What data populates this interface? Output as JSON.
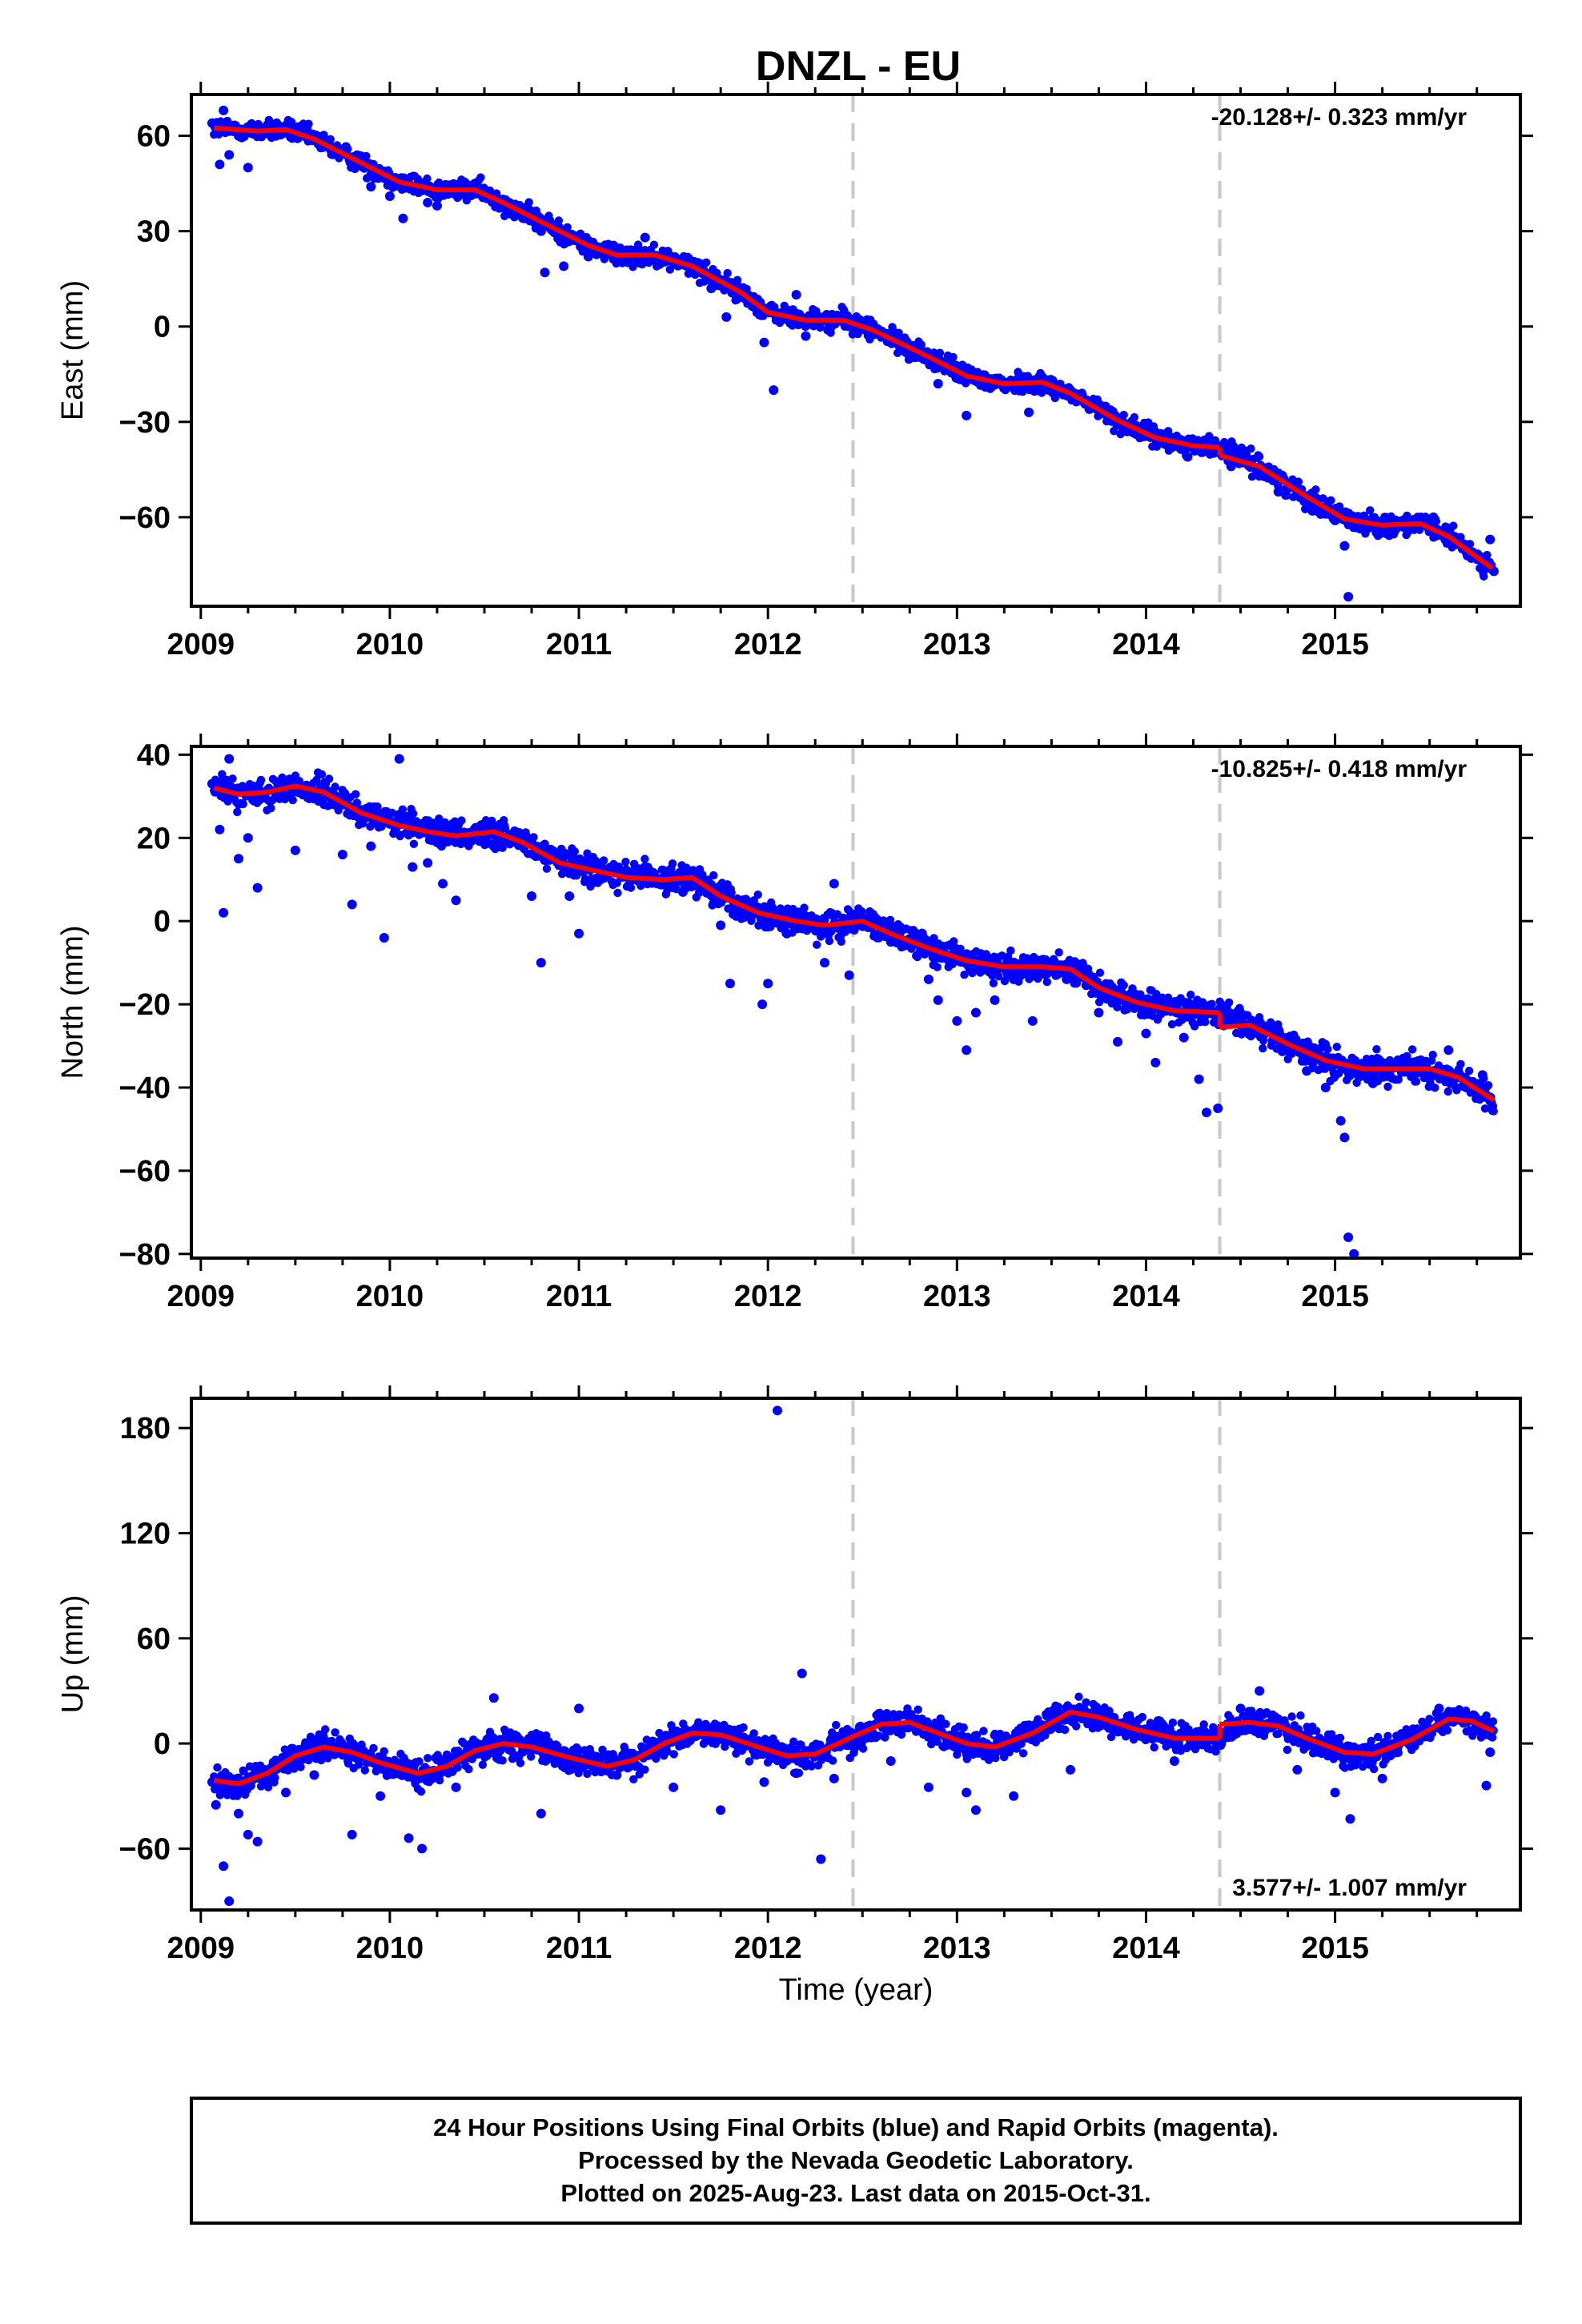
{
  "title": "DNZL - EU",
  "colors": {
    "final_orbits": "#0000ff",
    "model": "#ff0000",
    "event_line": "#c8c8c8",
    "frame": "#000000"
  },
  "footer": {
    "lines": [
      "24 Hour Positions Using Final Orbits (blue) and Rapid Orbits (magenta).",
      "Processed by the Nevada Geodetic Laboratory.",
      "Plotted on 2025-Aug-23. Last data on 2015-Oct-31."
    ]
  },
  "chart_data": [
    {
      "type": "scatter",
      "ylabel": "East (mm)",
      "xlabel": "",
      "rate_label": "-20.128+/- 0.323 mm/yr",
      "rate_position": "top-right",
      "xlim": [
        2008.95,
        2015.98
      ],
      "ylim": [
        -88,
        73
      ],
      "xticks": [
        2009,
        2010,
        2011,
        2012,
        2013,
        2014,
        2015
      ],
      "yticks": [
        60,
        30,
        0,
        -30,
        -60
      ],
      "ytick_labels": [
        "60",
        "30",
        "0",
        "−30",
        "−60"
      ],
      "event_lines_x": [
        2012.45,
        2014.39
      ],
      "model": {
        "name": "model",
        "offsets": [
          {
            "x": 2014.39,
            "dy": -2.5
          }
        ],
        "points": [
          [
            2009.07,
            62.5
          ],
          [
            2009.3,
            61.5
          ],
          [
            2009.45,
            62.0
          ],
          [
            2009.6,
            59.0
          ],
          [
            2009.85,
            51.5
          ],
          [
            2010.05,
            45.5
          ],
          [
            2010.25,
            43.0
          ],
          [
            2010.45,
            43.0
          ],
          [
            2010.6,
            39.0
          ],
          [
            2010.85,
            31.5
          ],
          [
            2011.05,
            25.5
          ],
          [
            2011.2,
            22.5
          ],
          [
            2011.4,
            22.5
          ],
          [
            2011.6,
            19.0
          ],
          [
            2011.85,
            11.0
          ],
          [
            2012.0,
            4.5
          ],
          [
            2012.2,
            2.0
          ],
          [
            2012.4,
            2.0
          ],
          [
            2012.55,
            -1.0
          ],
          [
            2012.85,
            -9.5
          ],
          [
            2013.05,
            -15.5
          ],
          [
            2013.25,
            -18.0
          ],
          [
            2013.45,
            -17.5
          ],
          [
            2013.6,
            -21.0
          ],
          [
            2013.85,
            -29.5
          ],
          [
            2014.05,
            -35.0
          ],
          [
            2014.25,
            -37.5
          ],
          [
            2014.39,
            -38.0
          ],
          [
            2014.6,
            -44.0
          ],
          [
            2014.85,
            -53.5
          ],
          [
            2015.05,
            -60.5
          ],
          [
            2015.25,
            -62.5
          ],
          [
            2015.45,
            -62.0
          ],
          [
            2015.6,
            -66.0
          ],
          [
            2015.83,
            -76.0
          ]
        ]
      },
      "points": [
        [
          2009.06,
          64
        ],
        [
          2009.1,
          51
        ],
        [
          2009.12,
          68
        ],
        [
          2009.15,
          54
        ],
        [
          2009.2,
          60
        ],
        [
          2009.25,
          50
        ],
        [
          2009.35,
          63
        ],
        [
          2009.55,
          60
        ],
        [
          2009.7,
          55
        ],
        [
          2009.9,
          44
        ],
        [
          2010.0,
          41
        ],
        [
          2010.07,
          34
        ],
        [
          2010.2,
          39
        ],
        [
          2010.25,
          38
        ],
        [
          2010.45,
          45
        ],
        [
          2010.6,
          40
        ],
        [
          2010.8,
          30
        ],
        [
          2010.82,
          17
        ],
        [
          2010.92,
          19
        ],
        [
          2011.05,
          22
        ],
        [
          2011.3,
          24
        ],
        [
          2011.35,
          28
        ],
        [
          2011.7,
          12
        ],
        [
          2011.78,
          3
        ],
        [
          2011.98,
          -5
        ],
        [
          2012.03,
          -20
        ],
        [
          2012.15,
          10
        ],
        [
          2012.2,
          -3
        ],
        [
          2012.48,
          0
        ],
        [
          2012.75,
          -10
        ],
        [
          2012.9,
          -18
        ],
        [
          2013.05,
          -28
        ],
        [
          2013.15,
          -19
        ],
        [
          2013.38,
          -27
        ],
        [
          2013.7,
          -26
        ],
        [
          2013.9,
          -33
        ],
        [
          2014.1,
          -37
        ],
        [
          2014.22,
          -41
        ],
        [
          2014.45,
          -44
        ],
        [
          2014.6,
          -47
        ],
        [
          2014.7,
          -52
        ],
        [
          2014.88,
          -58
        ],
        [
          2015.0,
          -61
        ],
        [
          2015.05,
          -69
        ],
        [
          2015.07,
          -85
        ],
        [
          2015.3,
          -65
        ],
        [
          2015.52,
          -60
        ],
        [
          2015.7,
          -72
        ],
        [
          2015.82,
          -67
        ],
        [
          2015.84,
          -77
        ]
      ]
    },
    {
      "type": "scatter",
      "ylabel": "North (mm)",
      "xlabel": "",
      "rate_label": "-10.825+/- 0.418 mm/yr",
      "rate_position": "top-right",
      "xlim": [
        2008.95,
        2015.98
      ],
      "ylim": [
        -81,
        42
      ],
      "xticks": [
        2009,
        2010,
        2011,
        2012,
        2013,
        2014,
        2015
      ],
      "yticks": [
        40,
        20,
        0,
        -20,
        -40,
        -60,
        -80
      ],
      "ytick_labels": [
        "40",
        "20",
        "0",
        "−20",
        "−40",
        "−60",
        "−80"
      ],
      "event_lines_x": [
        2012.45,
        2014.39
      ],
      "model": {
        "name": "model",
        "offsets": [
          {
            "x": 2014.39,
            "dy": -3.5
          }
        ],
        "points": [
          [
            2009.07,
            32.0
          ],
          [
            2009.2,
            30.5
          ],
          [
            2009.35,
            31.0
          ],
          [
            2009.5,
            32.5
          ],
          [
            2009.65,
            31.0
          ],
          [
            2009.85,
            26.0
          ],
          [
            2010.05,
            23.0
          ],
          [
            2010.2,
            21.5
          ],
          [
            2010.35,
            20.5
          ],
          [
            2010.55,
            21.5
          ],
          [
            2010.7,
            19.0
          ],
          [
            2010.9,
            14.0
          ],
          [
            2011.1,
            12.0
          ],
          [
            2011.25,
            10.5
          ],
          [
            2011.45,
            10.0
          ],
          [
            2011.6,
            10.5
          ],
          [
            2011.75,
            6.0
          ],
          [
            2011.95,
            2.0
          ],
          [
            2012.15,
            0.0
          ],
          [
            2012.3,
            -1.0
          ],
          [
            2012.5,
            0.0
          ],
          [
            2012.65,
            -3.0
          ],
          [
            2012.85,
            -6.5
          ],
          [
            2013.05,
            -9.5
          ],
          [
            2013.25,
            -11.0
          ],
          [
            2013.45,
            -11.0
          ],
          [
            2013.6,
            -11.5
          ],
          [
            2013.75,
            -16.0
          ],
          [
            2013.95,
            -19.5
          ],
          [
            2014.15,
            -21.5
          ],
          [
            2014.39,
            -22.0
          ],
          [
            2014.55,
            -25.0
          ],
          [
            2014.75,
            -29.5
          ],
          [
            2014.95,
            -33.5
          ],
          [
            2015.15,
            -35.5
          ],
          [
            2015.3,
            -35.5
          ],
          [
            2015.5,
            -35.5
          ],
          [
            2015.65,
            -37.5
          ],
          [
            2015.84,
            -43.0
          ]
        ]
      },
      "points": [
        [
          2009.06,
          33
        ],
        [
          2009.1,
          22
        ],
        [
          2009.12,
          2
        ],
        [
          2009.15,
          39
        ],
        [
          2009.2,
          15
        ],
        [
          2009.25,
          20
        ],
        [
          2009.3,
          8
        ],
        [
          2009.5,
          17
        ],
        [
          2009.75,
          16
        ],
        [
          2009.8,
          4
        ],
        [
          2009.9,
          18
        ],
        [
          2009.97,
          -4
        ],
        [
          2010.05,
          39
        ],
        [
          2010.12,
          13
        ],
        [
          2010.2,
          14
        ],
        [
          2010.28,
          9
        ],
        [
          2010.35,
          5
        ],
        [
          2010.55,
          18
        ],
        [
          2010.75,
          6
        ],
        [
          2010.8,
          -10
        ],
        [
          2010.95,
          6
        ],
        [
          2011.0,
          -3
        ],
        [
          2011.35,
          13
        ],
        [
          2011.55,
          7
        ],
        [
          2011.75,
          -1
        ],
        [
          2011.8,
          -15
        ],
        [
          2011.97,
          -20
        ],
        [
          2012.0,
          -15
        ],
        [
          2012.05,
          0
        ],
        [
          2012.1,
          -3
        ],
        [
          2012.3,
          -10
        ],
        [
          2012.35,
          9
        ],
        [
          2012.43,
          -13
        ],
        [
          2012.65,
          -5
        ],
        [
          2012.85,
          -14
        ],
        [
          2012.9,
          -19
        ],
        [
          2013.0,
          -24
        ],
        [
          2013.05,
          -31
        ],
        [
          2013.1,
          -22
        ],
        [
          2013.2,
          -19
        ],
        [
          2013.3,
          -14
        ],
        [
          2013.4,
          -24
        ],
        [
          2013.58,
          -14
        ],
        [
          2013.75,
          -22
        ],
        [
          2013.85,
          -29
        ],
        [
          2014.0,
          -27
        ],
        [
          2014.05,
          -34
        ],
        [
          2014.2,
          -28
        ],
        [
          2014.28,
          -38
        ],
        [
          2014.32,
          -46
        ],
        [
          2014.38,
          -45
        ],
        [
          2014.5,
          -25
        ],
        [
          2014.7,
          -28
        ],
        [
          2014.85,
          -36
        ],
        [
          2014.95,
          -40
        ],
        [
          2015.03,
          -48
        ],
        [
          2015.05,
          -52
        ],
        [
          2015.07,
          -76
        ],
        [
          2015.1,
          -80
        ],
        [
          2015.2,
          -39
        ],
        [
          2015.45,
          -34
        ],
        [
          2015.6,
          -31
        ],
        [
          2015.78,
          -37
        ],
        [
          2015.83,
          -45
        ]
      ]
    },
    {
      "type": "scatter",
      "ylabel": "Up (mm)",
      "xlabel": "Time (year)",
      "rate_label": "3.577+/- 1.007 mm/yr",
      "rate_position": "bottom-right",
      "xlim": [
        2008.95,
        2015.98
      ],
      "ylim": [
        -95,
        197
      ],
      "xticks": [
        2009,
        2010,
        2011,
        2012,
        2013,
        2014,
        2015
      ],
      "yticks": [
        180,
        120,
        60,
        0,
        -60
      ],
      "ytick_labels": [
        "180",
        "120",
        "60",
        "0",
        "−60"
      ],
      "event_lines_x": [
        2012.45,
        2014.39
      ],
      "model": {
        "name": "model",
        "offsets": [
          {
            "x": 2014.39,
            "dy": 8
          }
        ],
        "points": [
          [
            2009.07,
            -21
          ],
          [
            2009.2,
            -23
          ],
          [
            2009.35,
            -17
          ],
          [
            2009.5,
            -7
          ],
          [
            2009.65,
            -2
          ],
          [
            2009.8,
            -5
          ],
          [
            2009.95,
            -11
          ],
          [
            2010.15,
            -17
          ],
          [
            2010.3,
            -13
          ],
          [
            2010.45,
            -4
          ],
          [
            2010.6,
            0
          ],
          [
            2010.75,
            -2
          ],
          [
            2010.95,
            -8
          ],
          [
            2011.15,
            -13
          ],
          [
            2011.3,
            -9
          ],
          [
            2011.45,
            0
          ],
          [
            2011.6,
            6
          ],
          [
            2011.75,
            5
          ],
          [
            2011.95,
            -2
          ],
          [
            2012.1,
            -7
          ],
          [
            2012.25,
            -6
          ],
          [
            2012.45,
            4
          ],
          [
            2012.6,
            11
          ],
          [
            2012.75,
            12
          ],
          [
            2012.9,
            6
          ],
          [
            2013.05,
            0
          ],
          [
            2013.2,
            -2
          ],
          [
            2013.4,
            6
          ],
          [
            2013.6,
            18
          ],
          [
            2013.75,
            15
          ],
          [
            2013.95,
            8
          ],
          [
            2014.15,
            3
          ],
          [
            2014.39,
            3
          ],
          [
            2014.55,
            12
          ],
          [
            2014.7,
            10
          ],
          [
            2014.85,
            3
          ],
          [
            2015.05,
            -5
          ],
          [
            2015.2,
            -6
          ],
          [
            2015.4,
            2
          ],
          [
            2015.6,
            14
          ],
          [
            2015.72,
            13
          ],
          [
            2015.84,
            7
          ]
        ]
      },
      "points": [
        [
          2009.06,
          -22
        ],
        [
          2009.08,
          -35
        ],
        [
          2009.12,
          -70
        ],
        [
          2009.15,
          -90
        ],
        [
          2009.2,
          -40
        ],
        [
          2009.25,
          -52
        ],
        [
          2009.3,
          -56
        ],
        [
          2009.45,
          -28
        ],
        [
          2009.6,
          -18
        ],
        [
          2009.8,
          -52
        ],
        [
          2009.95,
          -30
        ],
        [
          2010.1,
          -54
        ],
        [
          2010.17,
          -60
        ],
        [
          2010.35,
          -25
        ],
        [
          2010.55,
          26
        ],
        [
          2010.8,
          -40
        ],
        [
          2011.0,
          20
        ],
        [
          2011.2,
          -18
        ],
        [
          2011.5,
          -25
        ],
        [
          2011.75,
          -38
        ],
        [
          2011.98,
          -22
        ],
        [
          2012.05,
          190
        ],
        [
          2012.15,
          -17
        ],
        [
          2012.18,
          40
        ],
        [
          2012.28,
          -66
        ],
        [
          2012.35,
          -20
        ],
        [
          2012.65,
          -10
        ],
        [
          2012.85,
          -25
        ],
        [
          2013.05,
          -28
        ],
        [
          2013.1,
          -38
        ],
        [
          2013.3,
          -30
        ],
        [
          2013.6,
          -15
        ],
        [
          2013.8,
          15
        ],
        [
          2014.15,
          -10
        ],
        [
          2014.5,
          20
        ],
        [
          2014.6,
          30
        ],
        [
          2014.8,
          -15
        ],
        [
          2015.0,
          -28
        ],
        [
          2015.08,
          -43
        ],
        [
          2015.25,
          -20
        ],
        [
          2015.55,
          20
        ],
        [
          2015.75,
          12
        ],
        [
          2015.8,
          -24
        ],
        [
          2015.82,
          -5
        ]
      ]
    }
  ]
}
